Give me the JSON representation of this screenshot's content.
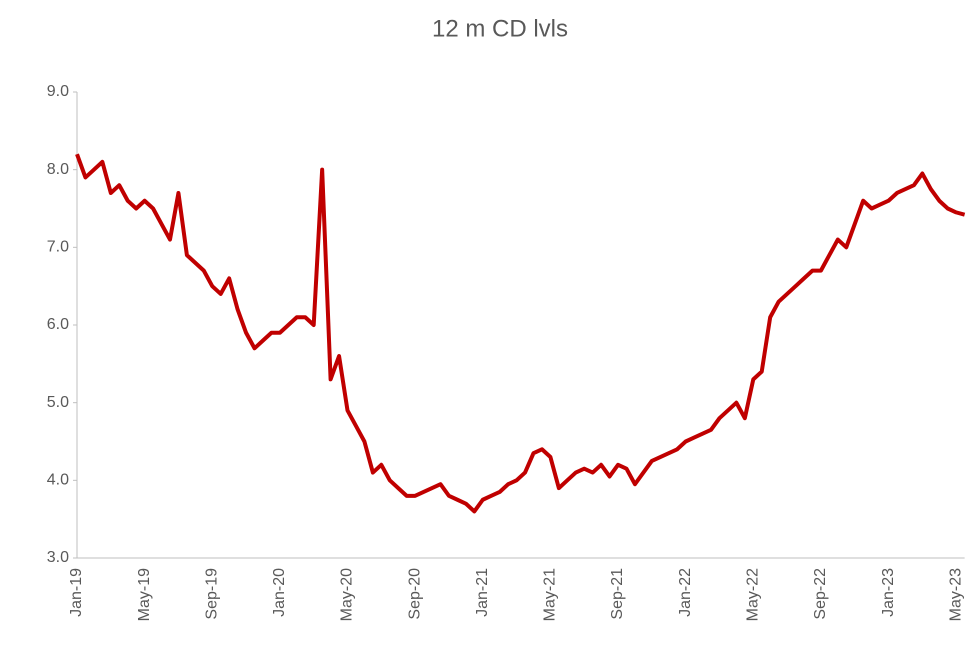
{
  "chart_data": {
    "type": "line",
    "title": "12 m CD lvls",
    "categories": [
      "Jan-19",
      null,
      null,
      null,
      null,
      null,
      null,
      null,
      "May-19",
      null,
      null,
      null,
      null,
      null,
      null,
      null,
      "Sep-19",
      null,
      null,
      null,
      null,
      null,
      null,
      null,
      "Jan-20",
      null,
      null,
      null,
      null,
      null,
      null,
      null,
      "May-20",
      null,
      null,
      null,
      null,
      null,
      null,
      null,
      "Sep-20",
      null,
      null,
      null,
      null,
      null,
      null,
      null,
      "Jan-21",
      null,
      null,
      null,
      null,
      null,
      null,
      null,
      "May-21",
      null,
      null,
      null,
      null,
      null,
      null,
      null,
      "Sep-21",
      null,
      null,
      null,
      null,
      null,
      null,
      null,
      "Jan-22",
      null,
      null,
      null,
      null,
      null,
      null,
      null,
      "May-22",
      null,
      null,
      null,
      null,
      null,
      null,
      null,
      "Sep-22",
      null,
      null,
      null,
      null,
      null,
      null,
      null,
      "Jan-23",
      null,
      null,
      null,
      null,
      null,
      null,
      null,
      "May-23",
      null
    ],
    "series": [
      {
        "name": "12 m CD",
        "color": "#c00000",
        "values": [
          8.2,
          7.9,
          8.0,
          8.1,
          7.7,
          7.8,
          7.6,
          7.5,
          7.6,
          7.5,
          7.3,
          7.1,
          7.7,
          6.9,
          6.8,
          6.7,
          6.5,
          6.4,
          6.6,
          6.2,
          5.9,
          5.7,
          5.8,
          5.9,
          5.9,
          6.0,
          6.1,
          6.1,
          6.0,
          8.0,
          5.3,
          5.6,
          4.9,
          4.7,
          4.5,
          4.1,
          4.2,
          4.0,
          3.9,
          3.8,
          3.8,
          3.85,
          3.9,
          3.95,
          3.8,
          3.75,
          3.7,
          3.6,
          3.75,
          3.8,
          3.85,
          3.95,
          4.0,
          4.1,
          4.35,
          4.4,
          4.3,
          3.9,
          4.0,
          4.1,
          4.15,
          4.1,
          4.2,
          4.05,
          4.2,
          4.15,
          3.95,
          4.1,
          4.25,
          4.3,
          4.35,
          4.4,
          4.5,
          4.55,
          4.6,
          4.65,
          4.8,
          4.9,
          5.0,
          4.8,
          5.3,
          5.4,
          6.1,
          6.3,
          6.4,
          6.5,
          6.6,
          6.7,
          6.7,
          6.9,
          7.1,
          7.0,
          7.3,
          7.6,
          7.5,
          7.55,
          7.6,
          7.7,
          7.75,
          7.8,
          7.95,
          7.75,
          7.6,
          7.5,
          7.45,
          7.42
        ]
      }
    ],
    "ylim": [
      3,
      9
    ],
    "yticks": [
      {
        "value": 3,
        "label": "3.0"
      },
      {
        "value": 4,
        "label": "4.0"
      },
      {
        "value": 5,
        "label": "5.0"
      },
      {
        "value": 6,
        "label": "6.0"
      },
      {
        "value": 7,
        "label": "7.0"
      },
      {
        "value": 8,
        "label": "8.0"
      },
      {
        "value": 9,
        "label": "9.0"
      }
    ],
    "grid": false
  }
}
